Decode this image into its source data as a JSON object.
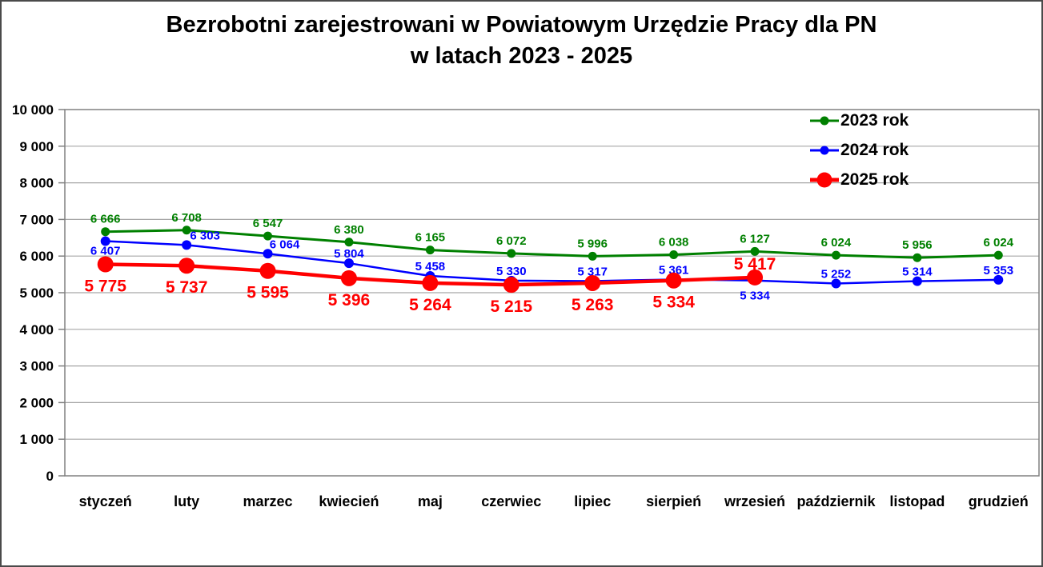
{
  "title": {
    "line1": "Bezrobotni zarejestrowani w Powiatowym Urzędzie Pracy dla PN",
    "line2": "w latach 2023 - 2025"
  },
  "chart_data": {
    "type": "line",
    "title": "Bezrobotni zarejestrowani w Powiatowym Urzędzie Pracy dla PN w latach 2023 - 2025",
    "categories": [
      "styczeń",
      "luty",
      "marzec",
      "kwiecień",
      "maj",
      "czerwiec",
      "lipiec",
      "sierpień",
      "wrzesień",
      "październik",
      "listopad",
      "grudzień"
    ],
    "series": [
      {
        "name": "2023 rok",
        "color": "#008000",
        "values": [
          6666,
          6708,
          6547,
          6380,
          6165,
          6072,
          5996,
          6038,
          6127,
          6024,
          5956,
          6024
        ]
      },
      {
        "name": "2024 rok",
        "color": "#0000FF",
        "values": [
          6407,
          6303,
          6064,
          5804,
          5458,
          5330,
          5317,
          5361,
          5334,
          5252,
          5314,
          5353
        ]
      },
      {
        "name": "2025 rok",
        "color": "#FF0000",
        "values": [
          5775,
          5737,
          5595,
          5396,
          5264,
          5215,
          5263,
          5334,
          5417
        ]
      }
    ],
    "xlabel": "",
    "ylabel": "",
    "ylim": [
      0,
      10000
    ],
    "ytick_step": 1000,
    "ytick_labels": [
      "0",
      "1 000",
      "2 000",
      "3 000",
      "4 000",
      "5 000",
      "6 000",
      "7 000",
      "8 000",
      "9 000",
      "10 000"
    ],
    "grid": "horizontal",
    "legend_position": "top-right",
    "number_format": "space-thousands",
    "data_labels": true
  },
  "colors": {
    "background": "#FFFFFF",
    "outer_border": "#4A4A4A",
    "plot_border": "#808080",
    "gridline": "#A6A6A6",
    "axis_text": "#000000",
    "series_2023": "#008000",
    "series_2024": "#0000FF",
    "series_2025": "#FF0000"
  }
}
